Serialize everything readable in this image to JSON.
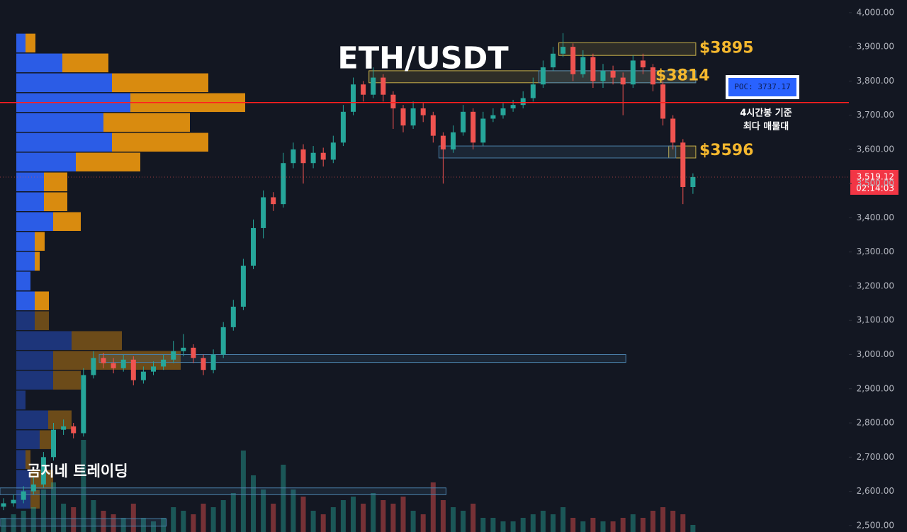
{
  "chart_data": {
    "type": "candlestick",
    "title": "ETH/USDT",
    "watermark": "곰지네 트레이딩",
    "ylim": [
      2481,
      4037
    ],
    "yticks": [
      {
        "value": 4000,
        "label": "4,000.00"
      },
      {
        "value": 3900,
        "label": "3,900.00"
      },
      {
        "value": 3800,
        "label": "3,800.00"
      },
      {
        "value": 3700,
        "label": "3,700.00"
      },
      {
        "value": 3600,
        "label": "3,600.00"
      },
      {
        "value": 3500,
        "label": "3,500.00"
      },
      {
        "value": 3400,
        "label": "3,400.00"
      },
      {
        "value": 3300,
        "label": "3,300.00"
      },
      {
        "value": 3200,
        "label": "3,200.00"
      },
      {
        "value": 3100,
        "label": "3,100.00"
      },
      {
        "value": 3000,
        "label": "3,000.00"
      },
      {
        "value": 2900,
        "label": "2,900.00"
      },
      {
        "value": 2800,
        "label": "2,800.00"
      },
      {
        "value": 2700,
        "label": "2,700.00"
      },
      {
        "value": 2600,
        "label": "2,600.00"
      },
      {
        "value": 2500,
        "label": "2,500.00"
      }
    ],
    "up_color": "#26a69a",
    "down_color": "#ef5350",
    "candles": {
      "open": [
        2555,
        2565,
        2575,
        2600,
        2620,
        2700,
        2780,
        2790,
        2770,
        2940,
        2990,
        2975,
        2960,
        2985,
        2925,
        2950,
        2965,
        2985,
        3010,
        3020,
        2990,
        2955,
        3000,
        3080,
        3140,
        3260,
        3370,
        3460,
        3440,
        3560,
        3600,
        3560,
        3590,
        3570,
        3620,
        3710,
        3790,
        3760,
        3810,
        3760,
        3720,
        3670,
        3720,
        3700,
        3640,
        3600,
        3650,
        3710,
        3620,
        3690,
        3700,
        3720,
        3730,
        3750,
        3790,
        3840,
        3880,
        3900,
        3820,
        3870,
        3800,
        3830,
        3810,
        3790,
        3860,
        3840,
        3790,
        3690,
        3620,
        3490
      ],
      "high": [
        2580,
        2590,
        2615,
        2640,
        2715,
        2800,
        2810,
        2800,
        2960,
        3010,
        3005,
        2990,
        3000,
        2995,
        2965,
        2980,
        3000,
        3040,
        3060,
        3030,
        3000,
        3015,
        3095,
        3160,
        3280,
        3395,
        3480,
        3475,
        3590,
        3620,
        3615,
        3610,
        3605,
        3640,
        3730,
        3810,
        3800,
        3840,
        3820,
        3770,
        3730,
        3740,
        3735,
        3710,
        3650,
        3670,
        3730,
        3720,
        3710,
        3720,
        3735,
        3745,
        3770,
        3810,
        3860,
        3900,
        3940,
        3910,
        3890,
        3880,
        3850,
        3845,
        3825,
        3875,
        3880,
        3850,
        3800,
        3700,
        3630,
        3530
      ],
      "low": [
        2545,
        2555,
        2565,
        2590,
        2610,
        2690,
        2765,
        2755,
        2760,
        2930,
        2960,
        2945,
        2950,
        2910,
        2915,
        2940,
        2955,
        2975,
        2995,
        2975,
        2940,
        2945,
        2990,
        3070,
        3130,
        3250,
        3340,
        3420,
        3430,
        3545,
        3500,
        3545,
        3550,
        3560,
        3610,
        3700,
        3740,
        3750,
        3740,
        3660,
        3650,
        3660,
        3680,
        3620,
        3500,
        3590,
        3640,
        3600,
        3610,
        3680,
        3690,
        3710,
        3720,
        3740,
        3780,
        3830,
        3870,
        3800,
        3810,
        3780,
        3780,
        3790,
        3700,
        3780,
        3820,
        3770,
        3670,
        3600,
        3440,
        3470
      ],
      "close": [
        2565,
        2575,
        2600,
        2620,
        2700,
        2780,
        2790,
        2770,
        2940,
        2990,
        2975,
        2960,
        2985,
        2925,
        2950,
        2965,
        2985,
        3010,
        3020,
        2990,
        2955,
        3000,
        3080,
        3140,
        3260,
        3370,
        3460,
        3440,
        3560,
        3600,
        3560,
        3590,
        3570,
        3620,
        3710,
        3790,
        3760,
        3810,
        3760,
        3720,
        3670,
        3720,
        3700,
        3640,
        3600,
        3650,
        3710,
        3620,
        3690,
        3700,
        3720,
        3730,
        3750,
        3790,
        3840,
        3880,
        3900,
        3820,
        3870,
        3800,
        3830,
        3810,
        3790,
        3860,
        3840,
        3790,
        3690,
        3620,
        3490,
        3519.12
      ]
    },
    "volume": [
      20,
      25,
      30,
      35,
      60,
      70,
      40,
      35,
      130,
      45,
      30,
      25,
      20,
      40,
      20,
      15,
      20,
      35,
      30,
      25,
      40,
      35,
      45,
      55,
      115,
      80,
      60,
      40,
      95,
      60,
      50,
      30,
      25,
      35,
      45,
      50,
      40,
      55,
      45,
      40,
      50,
      30,
      25,
      70,
      45,
      35,
      30,
      40,
      20,
      20,
      15,
      15,
      20,
      25,
      30,
      25,
      35,
      20,
      15,
      20,
      15,
      15,
      20,
      25,
      20,
      30,
      35,
      30,
      25,
      10
    ],
    "profile": {
      "bins": [
        3940,
        3882,
        3824,
        3766,
        3708,
        3650,
        3592,
        3534,
        3476,
        3418,
        3360,
        3302,
        3244,
        3186,
        3128,
        3070,
        3012,
        2954,
        2896,
        2838,
        2780,
        2722,
        2664,
        2606,
        2548
      ],
      "buy": [
        13,
        65,
        135,
        161,
        123,
        135,
        84,
        39,
        39,
        52,
        26,
        26,
        20,
        26,
        26,
        78,
        52,
        52,
        13,
        45,
        33,
        13,
        20,
        20
      ],
      "sell": [
        14,
        65,
        136,
        162,
        122,
        136,
        91,
        33,
        33,
        39,
        14,
        7,
        0,
        20,
        20,
        71,
        180,
        39,
        0,
        33,
        19,
        7,
        32,
        13
      ],
      "buy_color": "#2b5ce6",
      "sell_color": "#d98b0f",
      "value_area": [
        3128,
        3940
      ]
    },
    "zones": [
      {
        "low": 3875,
        "high": 3912,
        "from": 56,
        "to": 69,
        "color": "#c9b04a"
      },
      {
        "low": 3795,
        "high": 3830,
        "from": 37,
        "to": 69,
        "color": "#c9b04a"
      },
      {
        "low": 3795,
        "high": 3830,
        "from": 54,
        "to": 69,
        "color": "#4a7fa8"
      },
      {
        "low": 3575,
        "high": 3610,
        "from": 67,
        "to": 69,
        "color": "#c9b04a"
      },
      {
        "low": 3575,
        "high": 3610,
        "from": 44,
        "to": 67,
        "color": "#4a7fa8"
      },
      {
        "low": 2977,
        "high": 3000,
        "from": 10,
        "to": 62,
        "color": "#4a7fa8"
      },
      {
        "low": 2590,
        "high": 2610,
        "from": 0,
        "to": 44,
        "color": "#4a7fa8"
      },
      {
        "low": 2498,
        "high": 2520,
        "from": 0,
        "to": 16,
        "color": "#4a7fa8"
      }
    ],
    "annotations": [
      {
        "value": 3895,
        "label": "$3895"
      },
      {
        "value": 3814,
        "label": "$3814"
      },
      {
        "value": 3596,
        "label": "$3596"
      }
    ],
    "poc": {
      "value": 3737.17,
      "label": "POC: 3737.17",
      "note": [
        "4시간봉 기준",
        "최다 매물대"
      ]
    },
    "last_price": {
      "value": 3519.12,
      "label": "3,519.12",
      "countdown": "02:14:03"
    }
  }
}
